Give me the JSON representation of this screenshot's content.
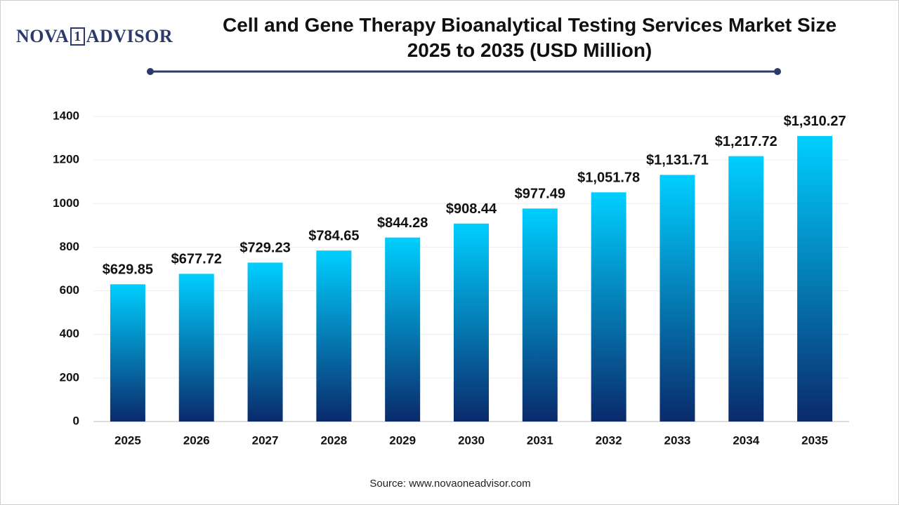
{
  "chart_data": {
    "type": "bar",
    "logo": [
      "NOVA",
      "1",
      "ADVISOR"
    ],
    "title": "Cell and Gene Therapy Bioanalytical Testing Services Market Size 2025 to 2035 (USD Million)",
    "source": "Source: www.novaoneadvisor.com",
    "categories": [
      "2025",
      "2026",
      "2027",
      "2028",
      "2029",
      "2030",
      "2031",
      "2032",
      "2033",
      "2034",
      "2035"
    ],
    "values": [
      629.85,
      677.72,
      729.23,
      784.65,
      844.28,
      908.44,
      977.49,
      1051.78,
      1131.71,
      1217.72,
      1310.27
    ],
    "value_labels": [
      "$629.85",
      "$677.72",
      "$729.23",
      "$784.65",
      "$844.28",
      "$908.44",
      "$977.49",
      "$1,051.78",
      "$1,131.71",
      "$1,217.72",
      "$1,310.27"
    ],
    "color": [
      "#00cfff",
      "#0a2a6b"
    ],
    "ylim": [
      0,
      1400
    ],
    "yticks": [
      0,
      200,
      400,
      600,
      800,
      1000,
      1200,
      1400
    ],
    "grid": true
  }
}
